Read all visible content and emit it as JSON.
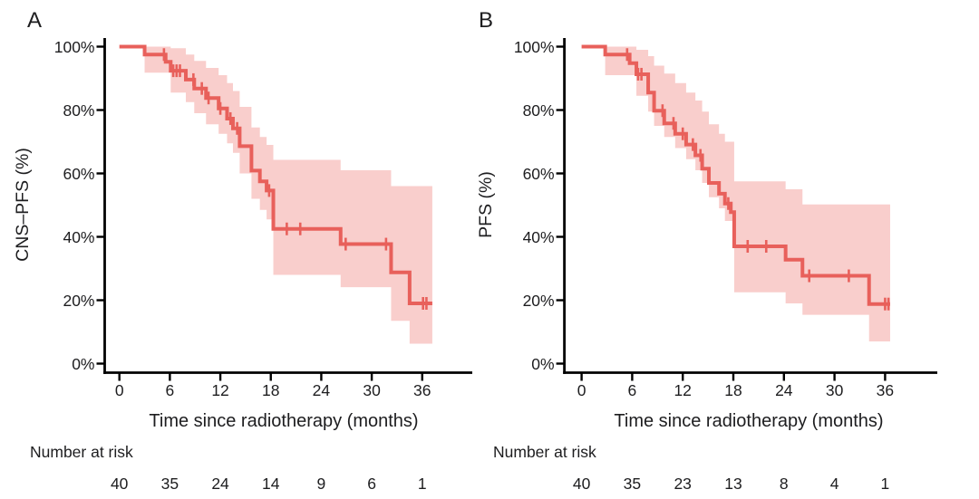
{
  "figure": {
    "background": "#ffffff",
    "description": "Kaplan-Meier survival curves, two panels"
  },
  "colors": {
    "curve": "#E8605B",
    "ci_band": "#F9CECC",
    "axis": "#000000",
    "text": "#1d1d1f"
  },
  "chart_data": [
    {
      "type": "line",
      "subtype": "kaplan-meier-step",
      "panel": "A",
      "xlabel": "Time since radiotherapy (months)",
      "ylabel": "CNS–PFS (%)",
      "risk_label": "Number at risk",
      "xlim": [
        0,
        39
      ],
      "ylim": [
        0,
        100
      ],
      "x_ticks": [
        0,
        6,
        12,
        18,
        24,
        30,
        36
      ],
      "y_ticks_percent": [
        0,
        20,
        40,
        60,
        80,
        100
      ],
      "y_tick_suffix": "%",
      "grid": false,
      "legend": "none",
      "steps": [
        {
          "t": 0,
          "s": 100
        },
        {
          "t": 3.0,
          "s": 97.5
        },
        {
          "t": 5.5,
          "s": 95.2
        },
        {
          "t": 6.1,
          "s": 92.4
        },
        {
          "t": 7.9,
          "s": 89.6
        },
        {
          "t": 8.9,
          "s": 86.8
        },
        {
          "t": 10.3,
          "s": 83.8
        },
        {
          "t": 11.8,
          "s": 80.5
        },
        {
          "t": 12.8,
          "s": 77.3
        },
        {
          "t": 13.5,
          "s": 74.2
        },
        {
          "t": 14.3,
          "s": 68.6
        },
        {
          "t": 15.7,
          "s": 60.9
        },
        {
          "t": 16.7,
          "s": 57.5
        },
        {
          "t": 17.5,
          "s": 54.6
        },
        {
          "t": 18.3,
          "s": 42.5
        },
        {
          "t": 26.3,
          "s": 37.7
        },
        {
          "t": 32.3,
          "s": 28.8
        },
        {
          "t": 34.5,
          "s": 19.0
        }
      ],
      "end_time": 37.2,
      "censors": [
        {
          "t": 5.3,
          "s": 97.5
        },
        {
          "t": 6.4,
          "s": 92.4
        },
        {
          "t": 6.8,
          "s": 92.4
        },
        {
          "t": 7.2,
          "s": 92.4
        },
        {
          "t": 8.8,
          "s": 89.6
        },
        {
          "t": 9.8,
          "s": 86.8
        },
        {
          "t": 10.6,
          "s": 83.8
        },
        {
          "t": 12.0,
          "s": 80.5
        },
        {
          "t": 13.2,
          "s": 77.3
        },
        {
          "t": 14.0,
          "s": 74.2
        },
        {
          "t": 17.8,
          "s": 54.6
        },
        {
          "t": 19.9,
          "s": 42.5
        },
        {
          "t": 21.5,
          "s": 42.5
        },
        {
          "t": 26.9,
          "s": 37.7
        },
        {
          "t": 31.7,
          "s": 37.7
        },
        {
          "t": 36.1,
          "s": 19.0
        },
        {
          "t": 36.5,
          "s": 19.0
        }
      ],
      "ci_band": [
        {
          "t0": 3.0,
          "t1": 6.1,
          "hi": 100,
          "lo": 91.8
        },
        {
          "t0": 6.1,
          "t1": 7.9,
          "hi": 99.5,
          "lo": 85.5
        },
        {
          "t0": 7.9,
          "t1": 8.9,
          "hi": 97.5,
          "lo": 82.5
        },
        {
          "t0": 8.9,
          "t1": 10.3,
          "hi": 95.5,
          "lo": 79.0
        },
        {
          "t0": 10.3,
          "t1": 11.8,
          "hi": 93.3,
          "lo": 75.5
        },
        {
          "t0": 11.8,
          "t1": 12.8,
          "hi": 91.0,
          "lo": 72.5
        },
        {
          "t0": 12.8,
          "t1": 13.5,
          "hi": 88.5,
          "lo": 69.5
        },
        {
          "t0": 13.5,
          "t1": 14.3,
          "hi": 86.0,
          "lo": 66.5
        },
        {
          "t0": 14.3,
          "t1": 15.7,
          "hi": 81.0,
          "lo": 60.0
        },
        {
          "t0": 15.7,
          "t1": 16.7,
          "hi": 74.5,
          "lo": 52.0
        },
        {
          "t0": 16.7,
          "t1": 17.5,
          "hi": 71.5,
          "lo": 48.5
        },
        {
          "t0": 17.5,
          "t1": 18.3,
          "hi": 69.0,
          "lo": 45.5
        },
        {
          "t0": 18.3,
          "t1": 26.3,
          "hi": 64.3,
          "lo": 28.0
        },
        {
          "t0": 26.3,
          "t1": 32.3,
          "hi": 61.0,
          "lo": 24.1
        },
        {
          "t0": 32.3,
          "t1": 34.5,
          "hi": 56.0,
          "lo": 13.5
        },
        {
          "t0": 34.5,
          "t1": 37.2,
          "hi": 56.0,
          "lo": 6.3
        }
      ],
      "number_at_risk": {
        "times": [
          0,
          6,
          12,
          18,
          24,
          30,
          36
        ],
        "counts": [
          40,
          35,
          24,
          14,
          9,
          6,
          1
        ]
      }
    },
    {
      "type": "line",
      "subtype": "kaplan-meier-step",
      "panel": "B",
      "xlabel": "Time since radiotherapy (months)",
      "ylabel": "PFS (%)",
      "risk_label": "Number at risk",
      "xlim": [
        0,
        39
      ],
      "ylim": [
        0,
        100
      ],
      "x_ticks": [
        0,
        6,
        12,
        18,
        24,
        30,
        36
      ],
      "y_ticks_percent": [
        0,
        20,
        40,
        60,
        80,
        100
      ],
      "y_tick_suffix": "%",
      "grid": false,
      "legend": "none",
      "steps": [
        {
          "t": 0,
          "s": 100
        },
        {
          "t": 2.8,
          "s": 97.5
        },
        {
          "t": 5.7,
          "s": 94.8
        },
        {
          "t": 6.5,
          "s": 91.3
        },
        {
          "t": 7.9,
          "s": 85.5
        },
        {
          "t": 8.6,
          "s": 79.8
        },
        {
          "t": 9.8,
          "s": 75.8
        },
        {
          "t": 11.1,
          "s": 72.5
        },
        {
          "t": 12.4,
          "s": 69.1
        },
        {
          "t": 13.5,
          "s": 65.7
        },
        {
          "t": 14.3,
          "s": 61.5
        },
        {
          "t": 15.1,
          "s": 57.0
        },
        {
          "t": 16.3,
          "s": 53.6
        },
        {
          "t": 17.0,
          "s": 50.5
        },
        {
          "t": 17.7,
          "s": 47.8
        },
        {
          "t": 18.1,
          "s": 37.0
        },
        {
          "t": 24.2,
          "s": 32.8
        },
        {
          "t": 26.2,
          "s": 27.7
        },
        {
          "t": 34.1,
          "s": 18.8
        }
      ],
      "end_time": 36.6,
      "censors": [
        {
          "t": 5.4,
          "s": 97.5
        },
        {
          "t": 6.7,
          "s": 91.3
        },
        {
          "t": 7.1,
          "s": 91.3
        },
        {
          "t": 9.6,
          "s": 79.8
        },
        {
          "t": 10.9,
          "s": 75.8
        },
        {
          "t": 12.0,
          "s": 72.5
        },
        {
          "t": 13.2,
          "s": 69.1
        },
        {
          "t": 14.1,
          "s": 65.7
        },
        {
          "t": 17.4,
          "s": 50.5
        },
        {
          "t": 19.7,
          "s": 37.0
        },
        {
          "t": 21.9,
          "s": 37.0
        },
        {
          "t": 27.0,
          "s": 27.7
        },
        {
          "t": 31.7,
          "s": 27.7
        },
        {
          "t": 36.0,
          "s": 18.8
        },
        {
          "t": 36.4,
          "s": 18.8
        }
      ],
      "ci_band": [
        {
          "t0": 2.8,
          "t1": 6.5,
          "hi": 100,
          "lo": 91.0
        },
        {
          "t0": 6.5,
          "t1": 7.9,
          "hi": 99.0,
          "lo": 84.5
        },
        {
          "t0": 7.9,
          "t1": 8.6,
          "hi": 97.0,
          "lo": 79.5
        },
        {
          "t0": 8.6,
          "t1": 9.8,
          "hi": 94.0,
          "lo": 75.0
        },
        {
          "t0": 9.8,
          "t1": 11.1,
          "hi": 91.5,
          "lo": 71.5
        },
        {
          "t0": 11.1,
          "t1": 12.4,
          "hi": 88.5,
          "lo": 68.0
        },
        {
          "t0": 12.4,
          "t1": 13.5,
          "hi": 85.5,
          "lo": 64.5
        },
        {
          "t0": 13.5,
          "t1": 14.3,
          "hi": 83.0,
          "lo": 61.0
        },
        {
          "t0": 14.3,
          "t1": 15.1,
          "hi": 79.5,
          "lo": 57.0
        },
        {
          "t0": 15.1,
          "t1": 16.3,
          "hi": 75.5,
          "lo": 52.5
        },
        {
          "t0": 16.3,
          "t1": 17.0,
          "hi": 72.5,
          "lo": 49.0
        },
        {
          "t0": 17.0,
          "t1": 18.1,
          "hi": 70.0,
          "lo": 45.0
        },
        {
          "t0": 18.1,
          "t1": 24.2,
          "hi": 57.5,
          "lo": 22.5
        },
        {
          "t0": 24.2,
          "t1": 26.2,
          "hi": 55.0,
          "lo": 19.0
        },
        {
          "t0": 26.2,
          "t1": 34.1,
          "hi": 50.2,
          "lo": 15.4
        },
        {
          "t0": 34.1,
          "t1": 36.6,
          "hi": 50.2,
          "lo": 7.0
        }
      ],
      "number_at_risk": {
        "times": [
          0,
          6,
          12,
          18,
          24,
          30,
          36
        ],
        "counts": [
          40,
          35,
          23,
          13,
          8,
          4,
          1
        ]
      }
    }
  ]
}
